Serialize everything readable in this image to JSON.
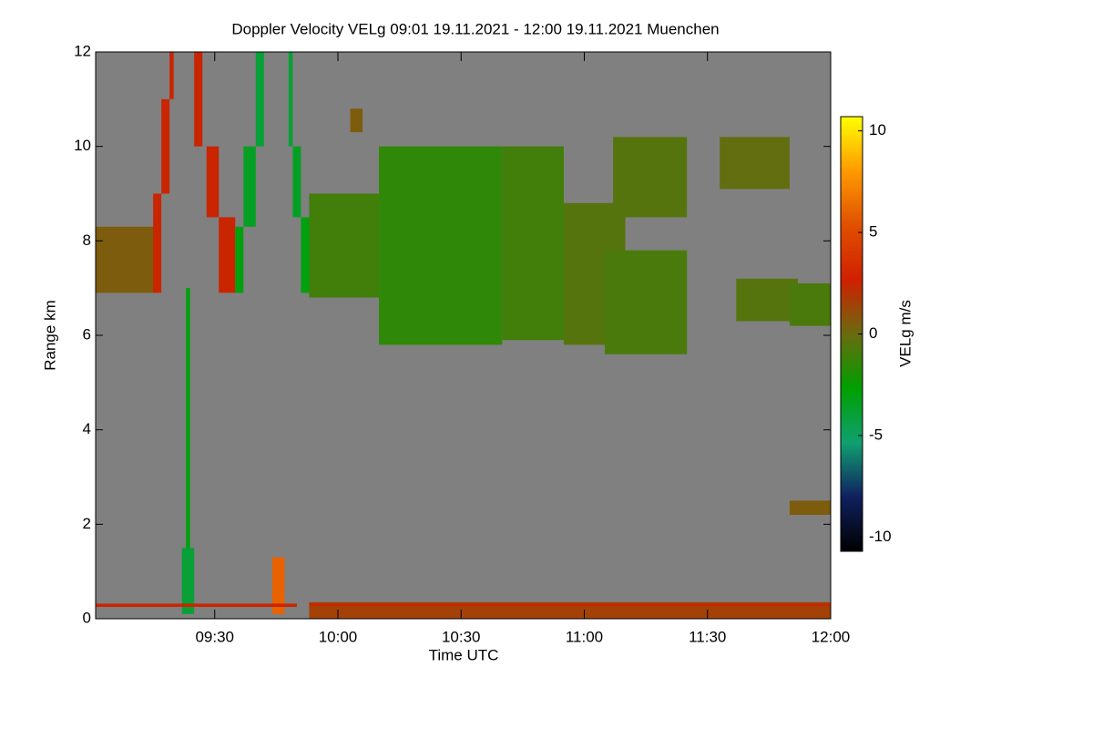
{
  "chart_data": {
    "type": "heatmap",
    "title": "Doppler Velocity VELg   09:01 19.11.2021 - 12:00 19.11.2021 Muenchen",
    "x_label": "Time UTC",
    "y_label": "Range km",
    "xlim": [
      "09:01",
      "12:00"
    ],
    "xticks": [
      "09:30",
      "10:00",
      "10:30",
      "11:00",
      "11:30",
      "12:00"
    ],
    "ylim": [
      0,
      12
    ],
    "yticks": [
      0,
      2,
      4,
      6,
      8,
      10,
      12
    ],
    "background": "#808080",
    "colorbar": {
      "label": "VELg m/s",
      "lim": [
        -10.7,
        10.7
      ],
      "ticks": [
        -10,
        -5,
        0,
        5,
        10
      ],
      "colors": [
        "#000000",
        "#102060",
        "#10a070",
        "#00a000",
        "#6a6a10",
        "#d02000",
        "#e05000",
        "#ff9a00",
        "#ffff00"
      ]
    },
    "cells": [
      {
        "x": [
          "09:01",
          "09:16"
        ],
        "y": [
          6.9,
          8.3
        ],
        "value": 0.5
      },
      {
        "x": [
          "09:15",
          "09:17"
        ],
        "y": [
          6.9,
          9
        ],
        "value": 2.5
      },
      {
        "x": [
          "09:17",
          "09:19"
        ],
        "y": [
          9,
          11
        ],
        "value": 2.5
      },
      {
        "x": [
          "09:19",
          "09:20"
        ],
        "y": [
          11,
          12
        ],
        "value": 2.5
      },
      {
        "x": [
          "09:25",
          "09:27"
        ],
        "y": [
          10,
          12
        ],
        "value": 2.5
      },
      {
        "x": [
          "09:28",
          "09:31"
        ],
        "y": [
          8.5,
          10
        ],
        "value": 2.5
      },
      {
        "x": [
          "09:31",
          "09:35"
        ],
        "y": [
          6.9,
          8.5
        ],
        "value": 2.5
      },
      {
        "x": [
          "09:35",
          "09:37"
        ],
        "y": [
          6.9,
          8.3
        ],
        "value": -3
      },
      {
        "x": [
          "09:37",
          "09:40"
        ],
        "y": [
          8.3,
          10
        ],
        "value": -3.5
      },
      {
        "x": [
          "09:40",
          "09:42"
        ],
        "y": [
          10,
          12
        ],
        "value": -4
      },
      {
        "x": [
          "09:48",
          "09:49"
        ],
        "y": [
          10,
          12
        ],
        "value": -4
      },
      {
        "x": [
          "09:49",
          "09:51"
        ],
        "y": [
          8.5,
          10
        ],
        "value": -3.5
      },
      {
        "x": [
          "09:51",
          "09:53"
        ],
        "y": [
          6.9,
          8.5
        ],
        "value": -3
      },
      {
        "x": [
          "09:23",
          "09:24"
        ],
        "y": [
          0.2,
          7
        ],
        "value": -3
      },
      {
        "x": [
          "09:22",
          "09:25"
        ],
        "y": [
          0.1,
          1.5
        ],
        "value": -4
      },
      {
        "x": [
          "09:44",
          "09:47"
        ],
        "y": [
          0.1,
          1.3
        ],
        "value": 6
      },
      {
        "x": [
          "09:53",
          "10:10"
        ],
        "y": [
          6.8,
          9
        ],
        "value": -1
      },
      {
        "x": [
          "10:03",
          "10:06"
        ],
        "y": [
          10.3,
          10.8
        ],
        "value": 0.5
      },
      {
        "x": [
          "10:10",
          "10:40"
        ],
        "y": [
          5.8,
          10
        ],
        "value": -1.5
      },
      {
        "x": [
          "10:40",
          "10:55"
        ],
        "y": [
          5.9,
          10
        ],
        "value": -1
      },
      {
        "x": [
          "10:55",
          "11:10"
        ],
        "y": [
          5.8,
          8.8
        ],
        "value": -0.5
      },
      {
        "x": [
          "11:05",
          "11:25"
        ],
        "y": [
          5.6,
          7.8
        ],
        "value": -0.8
      },
      {
        "x": [
          "11:07",
          "11:25"
        ],
        "y": [
          8.5,
          10.2
        ],
        "value": -0.5
      },
      {
        "x": [
          "11:33",
          "11:50"
        ],
        "y": [
          9.1,
          10.2
        ],
        "value": -0.2
      },
      {
        "x": [
          "11:37",
          "11:52"
        ],
        "y": [
          6.3,
          7.2
        ],
        "value": -0.5
      },
      {
        "x": [
          "11:50",
          "12:00"
        ],
        "y": [
          6.2,
          7.1
        ],
        "value": -0.8
      },
      {
        "x": [
          "11:50",
          "12:00"
        ],
        "y": [
          2.2,
          2.5
        ],
        "value": 0.5
      },
      {
        "x": [
          "09:01",
          "09:50"
        ],
        "y": [
          0.25,
          0.32
        ],
        "value": 2.5
      },
      {
        "x": [
          "09:53",
          "12:00"
        ],
        "y": [
          0,
          0.35
        ],
        "value": 1.5
      },
      {
        "x": [
          "09:53",
          "12:00"
        ],
        "y": [
          0.27,
          0.32
        ],
        "value": 2.5
      }
    ]
  }
}
